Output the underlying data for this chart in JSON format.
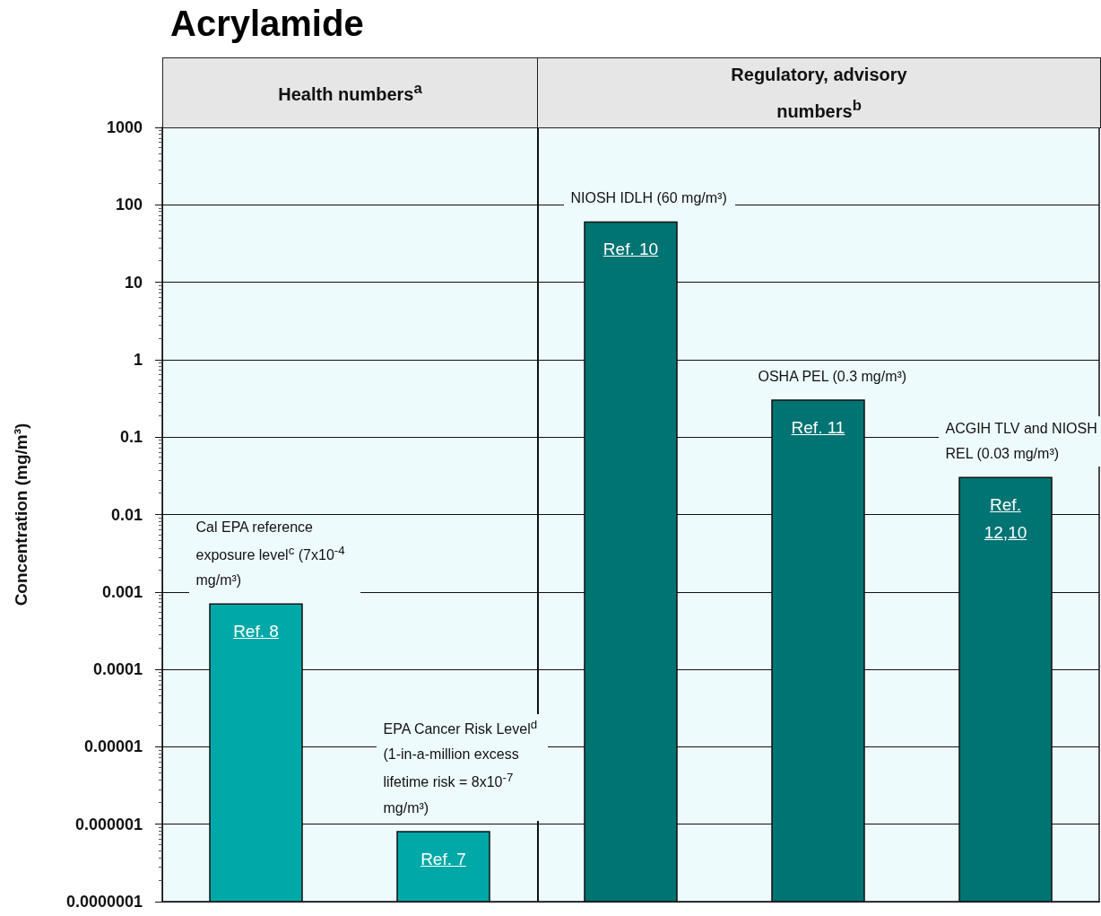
{
  "chart_data": {
    "type": "bar",
    "title": "Acrylamide",
    "ylabel": "Concentration (mg/m³)",
    "categories": [
      null,
      null,
      null,
      null,
      null
    ],
    "values": [
      0.0007,
      8e-07,
      60,
      0.3,
      0.03
    ],
    "colors": [
      "#00a8a8",
      "#00a8a8",
      "#007373",
      "#007373",
      "#007373"
    ],
    "value_labels": [
      "Cal EPA reference exposure level$^{c}$ (7x10$^{-4}$ mg/m³)",
      "EPA Cancer Risk Level$^{d}$ (1-in-a-million excess lifetime risk = 8x10$^{-7}$ mg/m³)",
      "NIOSH IDLH (60 mg/m³)",
      "OSHA PEL (0.3 mg/m³)",
      "ACGIH TLV and NIOSH REL (0.03 mg/m³)"
    ],
    "annotations": [
      "Health numbers$^{a}$",
      "Regulatory, advisory numbers$^{b}$",
      "Ref. 8",
      "Ref. 7",
      "Ref. 10",
      "Ref. 11",
      "Ref. 12,10"
    ],
    "log": true,
    "ylim": [
      1e-07,
      1000
    ],
    "yticks": [
      {
        "value": 1e-07,
        "label": "0.0000001"
      },
      {
        "value": 1e-06,
        "label": "0.000001"
      },
      {
        "value": 1e-05,
        "label": "0.00001"
      },
      {
        "value": 0.0001,
        "label": "0.0001"
      },
      {
        "value": 0.001,
        "label": "0.001"
      },
      0.01,
      0.1,
      1,
      10,
      100,
      1000
    ],
    "grid": "y"
  }
}
